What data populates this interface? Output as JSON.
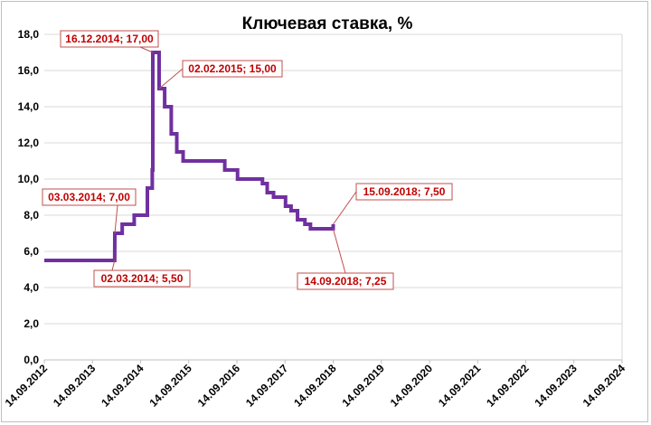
{
  "chart_data": {
    "type": "line",
    "title": "Ключевая ставка, %",
    "xlabel": "",
    "ylabel": "",
    "ylim": [
      0,
      18
    ],
    "y_ticks": [
      "0,0",
      "2,0",
      "4,0",
      "6,0",
      "8,0",
      "10,0",
      "12,0",
      "14,0",
      "16,0",
      "18,0"
    ],
    "x_ticks": [
      "14.09.2012",
      "14.09.2013",
      "14.09.2014",
      "14.09.2015",
      "14.09.2016",
      "14.09.2017",
      "14.09.2018",
      "14.09.2019",
      "14.09.2020",
      "14.09.2021",
      "14.09.2022",
      "14.09.2023",
      "14.09.2024"
    ],
    "xlim": [
      "2012-09-14",
      "2024-09-14"
    ],
    "grid": true,
    "line_color": "#7030a0",
    "series": [
      {
        "points": [
          [
            "2012-09-14",
            5.5
          ],
          [
            "2014-03-02",
            5.5
          ],
          [
            "2014-03-03",
            7.0
          ],
          [
            "2014-04-28",
            7.0
          ],
          [
            "2014-04-28",
            7.5
          ],
          [
            "2014-07-28",
            7.5
          ],
          [
            "2014-07-28",
            8.0
          ],
          [
            "2014-11-05",
            8.0
          ],
          [
            "2014-11-05",
            9.5
          ],
          [
            "2014-12-12",
            9.5
          ],
          [
            "2014-12-12",
            10.5
          ],
          [
            "2014-12-16",
            10.5
          ],
          [
            "2014-12-16",
            17.0
          ],
          [
            "2015-02-02",
            17.0
          ],
          [
            "2015-02-02",
            15.0
          ],
          [
            "2015-03-16",
            15.0
          ],
          [
            "2015-03-16",
            14.0
          ],
          [
            "2015-05-05",
            14.0
          ],
          [
            "2015-05-05",
            12.5
          ],
          [
            "2015-06-16",
            12.5
          ],
          [
            "2015-06-16",
            11.5
          ],
          [
            "2015-08-03",
            11.5
          ],
          [
            "2015-08-03",
            11.0
          ],
          [
            "2016-06-14",
            11.0
          ],
          [
            "2016-06-14",
            10.5
          ],
          [
            "2016-09-19",
            10.5
          ],
          [
            "2016-09-19",
            10.0
          ],
          [
            "2017-03-27",
            10.0
          ],
          [
            "2017-03-27",
            9.75
          ],
          [
            "2017-05-02",
            9.75
          ],
          [
            "2017-05-02",
            9.25
          ],
          [
            "2017-06-19",
            9.25
          ],
          [
            "2017-06-19",
            9.0
          ],
          [
            "2017-09-18",
            9.0
          ],
          [
            "2017-09-18",
            8.5
          ],
          [
            "2017-10-30",
            8.5
          ],
          [
            "2017-10-30",
            8.25
          ],
          [
            "2017-12-18",
            8.25
          ],
          [
            "2017-12-18",
            7.75
          ],
          [
            "2018-02-12",
            7.75
          ],
          [
            "2018-02-12",
            7.5
          ],
          [
            "2018-03-26",
            7.5
          ],
          [
            "2018-03-26",
            7.25
          ],
          [
            "2018-09-14",
            7.25
          ],
          [
            "2018-09-15",
            7.5
          ]
        ]
      }
    ],
    "annotations": [
      {
        "text": "16.12.2014; 17,00",
        "date": "2014-12-16",
        "value": 17.0
      },
      {
        "text": "02.02.2015; 15,00",
        "date": "2015-02-02",
        "value": 15.0
      },
      {
        "text": "03.03.2014; 7,00",
        "date": "2014-03-03",
        "value": 7.0
      },
      {
        "text": "02.03.2014; 5,50",
        "date": "2014-03-02",
        "value": 5.5
      },
      {
        "text": "15.09.2018; 7,50",
        "date": "2018-09-15",
        "value": 7.5
      },
      {
        "text": "14.09.2018; 7,25",
        "date": "2018-09-14",
        "value": 7.25
      }
    ]
  }
}
